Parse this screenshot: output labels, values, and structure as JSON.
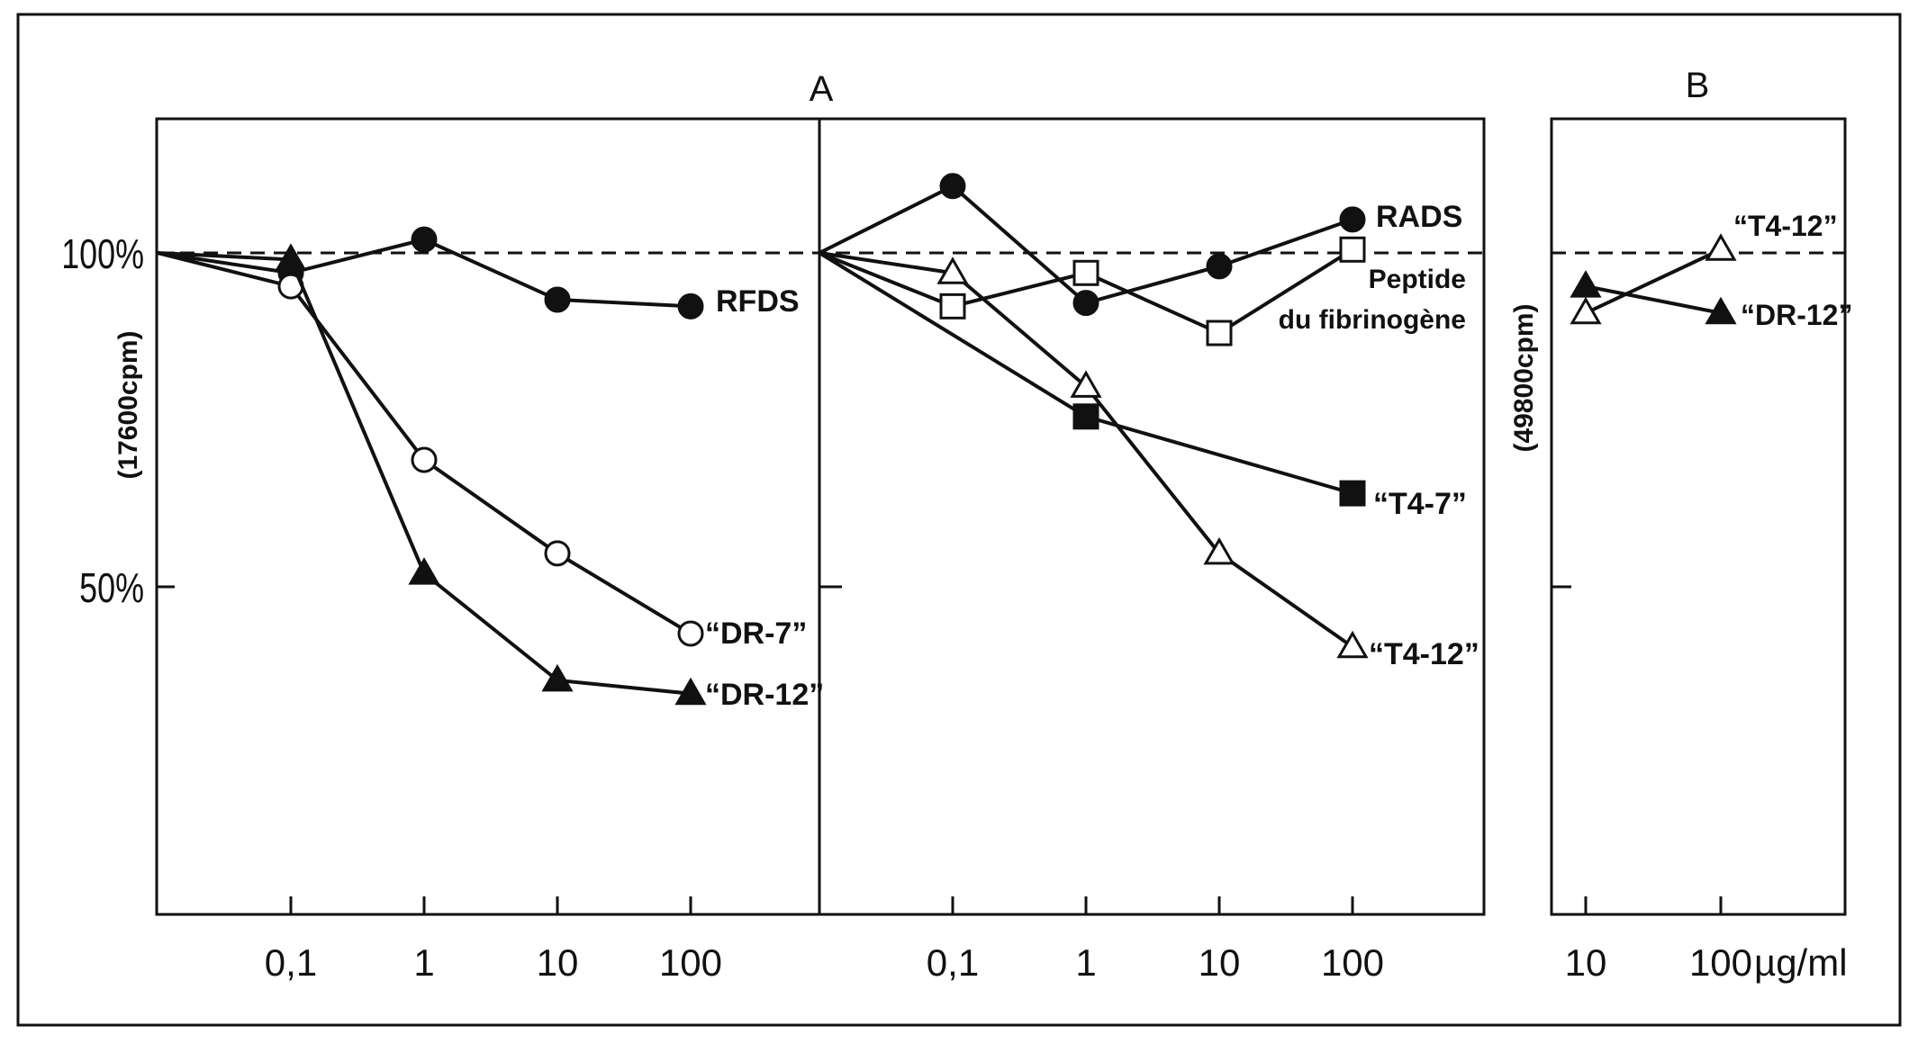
{
  "chart_data": [
    {
      "type": "line",
      "panel": "A",
      "title": "A",
      "ylabel": "(17600cpm)",
      "yticks": [
        "100%",
        "50%"
      ],
      "ytick_values": [
        100,
        50
      ],
      "xscale": "log",
      "reference_line": {
        "value": 100,
        "style": "dashed"
      },
      "subpanels": [
        {
          "id": "A-left",
          "x_ticks": [
            "0,1",
            "1",
            "10",
            "100"
          ],
          "x": [
            0.1,
            1,
            10,
            100
          ],
          "series": [
            {
              "name": "RFDS",
              "marker": "filled-circle",
              "values": [
                97,
                102,
                93,
                92
              ]
            },
            {
              "name": "“DR-7”",
              "marker": "open-circle",
              "values": [
                95,
                69,
                55,
                43
              ]
            },
            {
              "name": "“DR-12”",
              "marker": "filled-triangle",
              "values": [
                99,
                52,
                36,
                34
              ]
            }
          ]
        },
        {
          "id": "A-right",
          "x_ticks": [
            "0,1",
            "1",
            "10",
            "100"
          ],
          "x": [
            0.1,
            1,
            10,
            100
          ],
          "series": [
            {
              "name": "RADS",
              "marker": "filled-circle",
              "values": [
                110,
                92.5,
                98,
                105
              ]
            },
            {
              "name": "Peptide du fibrinogène",
              "label_lines": [
                "Peptide",
                "du fibrinogène"
              ],
              "marker": "open-square",
              "values": [
                92,
                97,
                88,
                100.5
              ]
            },
            {
              "name": "“T4-12”",
              "marker": "open-triangle",
              "values": [
                97,
                80,
                55,
                41
              ]
            },
            {
              "name": "“T4-7”",
              "marker": "filled-square",
              "values": [
                null,
                75.5,
                null,
                64
              ]
            }
          ]
        }
      ]
    },
    {
      "type": "line",
      "panel": "B",
      "title": "B",
      "ylabel": "(49800cpm)",
      "xscale": "log",
      "reference_line": {
        "value": 100,
        "style": "dashed"
      },
      "x_ticks": [
        "10",
        "100"
      ],
      "x": [
        10,
        100
      ],
      "xunit": "µg/ml",
      "series": [
        {
          "name": "“T4-12”",
          "marker": "open-triangle",
          "values": [
            91,
            100.5
          ]
        },
        {
          "name": "“DR-12”",
          "marker": "filled-triangle",
          "values": [
            95,
            91
          ]
        }
      ]
    }
  ]
}
